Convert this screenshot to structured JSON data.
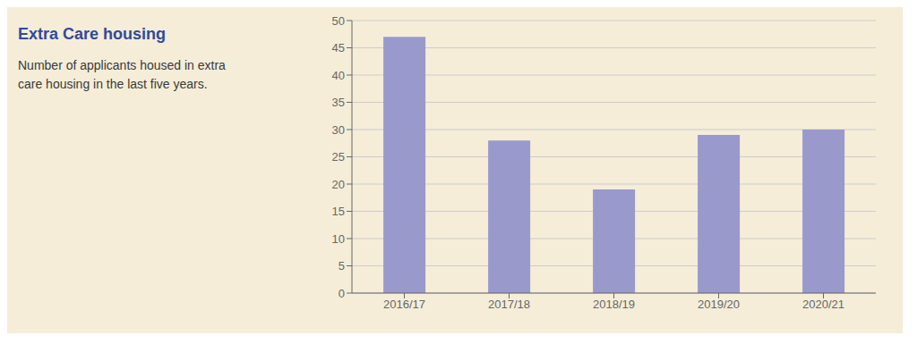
{
  "chart_data": {
    "type": "bar",
    "title": "Extra Care housing",
    "subtitle": "Number of applicants housed in extra\ncare housing in the last five years.",
    "categories": [
      "2016/17",
      "2017/18",
      "2018/19",
      "2019/20",
      "2020/21"
    ],
    "values": [
      47,
      28,
      19,
      29,
      30
    ],
    "color": "#9999cc",
    "ylim": [
      0,
      50
    ],
    "yticks": [
      0,
      5,
      10,
      15,
      20,
      25,
      30,
      35,
      40,
      45,
      50
    ],
    "grid": true
  }
}
